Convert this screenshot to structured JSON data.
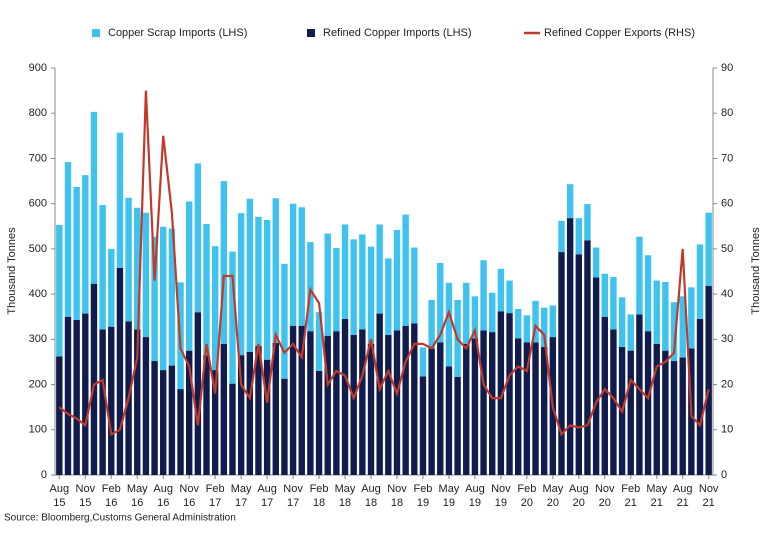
{
  "chart_data": {
    "type": "bar-line",
    "source": "Source: Bloomberg,Customs General Administration",
    "ylabel": "Thousand Tonnes",
    "y2label": "Thousand Tonnes",
    "categories": [
      "Aug 15",
      null,
      null,
      "Nov 15",
      null,
      null,
      "Feb 16",
      null,
      null,
      "May 16",
      null,
      null,
      "Aug 16",
      null,
      null,
      "Nov 16",
      null,
      null,
      "Feb 17",
      null,
      null,
      "May 17",
      null,
      null,
      "Aug 17",
      null,
      null,
      "Nov 17",
      null,
      null,
      "Feb 18",
      null,
      null,
      "May 18",
      null,
      null,
      "Aug 18",
      null,
      null,
      "Nov 18",
      null,
      null,
      "Feb 19",
      null,
      null,
      "May 19",
      null,
      null,
      "Aug 19",
      null,
      null,
      "Nov 19",
      null,
      null,
      "Feb 20",
      null,
      null,
      "May 20",
      null,
      null,
      "Aug 20",
      null,
      null,
      "Nov 20",
      null,
      null,
      "Feb 21",
      null,
      null,
      "May 21",
      null,
      null,
      "Aug 21",
      null,
      null,
      "Nov 21"
    ],
    "series": [
      {
        "name": "Copper Scrap Imports (LHS)",
        "color": "#3fc3ee",
        "stack": "imports",
        "values": [
          291,
          342,
          294,
          306,
          380,
          275,
          172,
          299,
          273,
          269,
          275,
          275,
          317,
          303,
          236,
          330,
          329,
          290,
          274,
          360,
          292,
          314,
          339,
          286,
          309,
          320,
          254,
          270,
          262,
          197,
          130,
          226,
          184,
          209,
          211,
          210,
          215,
          197,
          169,
          222,
          246,
          168,
          64,
          107,
          176,
          185,
          170,
          135,
          93,
          155,
          87,
          94,
          72,
          65,
          60,
          92,
          87,
          70,
          69,
          75,
          80,
          80,
          66,
          95,
          116,
          110,
          80,
          172,
          168,
          140,
          152,
          130,
          135,
          135,
          165,
          162
        ]
      },
      {
        "name": "Refined Copper Imports (LHS)",
        "color": "#101c4e",
        "stack": "imports",
        "values": [
          262,
          350,
          343,
          357,
          423,
          322,
          328,
          458,
          340,
          322,
          305,
          252,
          232,
          242,
          190,
          275,
          360,
          265,
          232,
          290,
          202,
          265,
          272,
          285,
          255,
          292,
          213,
          330,
          330,
          318,
          230,
          308,
          318,
          345,
          310,
          322,
          290,
          357,
          310,
          320,
          330,
          335,
          218,
          280,
          293,
          240,
          217,
          290,
          302,
          320,
          316,
          362,
          358,
          302,
          293,
          293,
          283,
          305,
          493,
          568,
          488,
          519,
          437,
          350,
          322,
          283,
          275,
          355,
          318,
          290,
          275,
          252,
          260,
          280,
          345,
          418
        ]
      },
      {
        "name": "Refined Copper Exports (RHS)",
        "color": "#c0392b",
        "axis": "y2",
        "values": [
          15,
          13.5,
          12.5,
          11,
          20,
          21,
          9,
          10,
          17,
          26,
          85,
          43,
          75,
          58,
          28,
          24,
          11,
          29,
          18,
          44,
          44,
          20,
          17,
          29,
          16,
          31,
          27,
          29,
          26,
          41,
          38,
          20,
          23,
          22,
          17,
          22,
          30,
          19,
          23,
          18,
          25,
          29,
          29,
          28,
          31,
          36,
          30,
          28,
          32,
          20,
          17,
          17,
          22,
          24,
          23,
          33,
          31,
          15,
          9,
          11,
          10.5,
          11,
          16,
          19,
          17,
          14,
          21,
          19,
          17,
          24,
          25,
          27,
          50,
          13,
          11,
          19
        ]
      }
    ],
    "ylim": [
      0,
      900
    ],
    "yticks": [
      0,
      100,
      200,
      300,
      400,
      500,
      600,
      700,
      800,
      900
    ],
    "y2lim": [
      0,
      90
    ],
    "y2ticks": [
      0,
      10,
      20,
      30,
      40,
      50,
      60,
      70,
      80,
      90
    ],
    "grid": false,
    "legend": "top"
  }
}
